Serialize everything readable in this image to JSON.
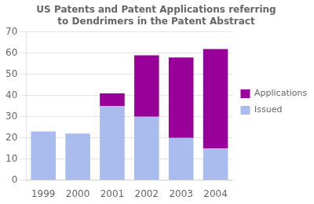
{
  "chart_data": {
    "type": "bar",
    "title": "US Patents and Patent Applications referring\nto Dendrimers in the Patent Abstract",
    "categories": [
      "1999",
      "2000",
      "2001",
      "2002",
      "2003",
      "2004"
    ],
    "series": [
      {
        "name": "Issued",
        "color": "#aabbee",
        "values": [
          23,
          22,
          35,
          30,
          20,
          15
        ]
      },
      {
        "name": "Applications",
        "color": "#990099",
        "values": [
          0,
          0,
          6,
          29,
          38,
          47
        ]
      }
    ],
    "stacked": true,
    "ylim": [
      0,
      70
    ],
    "yticks": [
      0,
      10,
      20,
      30,
      40,
      50,
      60,
      70
    ],
    "grid": true,
    "legend": "right"
  }
}
